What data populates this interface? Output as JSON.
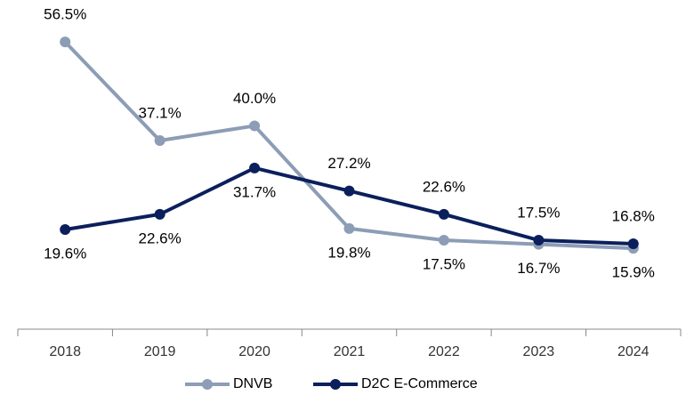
{
  "chart_data": {
    "type": "line",
    "categories": [
      "2018",
      "2019",
      "2020",
      "2021",
      "2022",
      "2023",
      "2024"
    ],
    "series": [
      {
        "name": "DNVB",
        "color": "#8c9db5",
        "values": [
          56.5,
          37.1,
          40.0,
          19.8,
          17.5,
          16.7,
          15.9
        ],
        "value_labels": [
          "56.5%",
          "37.1%",
          "40.0%",
          "19.8%",
          "17.5%",
          "16.7%",
          "15.9%"
        ]
      },
      {
        "name": "D2C E-Commerce",
        "color": "#0b1f5c",
        "values": [
          19.6,
          22.6,
          31.7,
          27.2,
          22.6,
          17.5,
          16.8
        ],
        "value_labels": [
          "19.6%",
          "22.6%",
          "31.7%",
          "27.2%",
          "22.6%",
          "17.5%",
          "16.8%"
        ]
      }
    ],
    "legend": "bottom"
  }
}
